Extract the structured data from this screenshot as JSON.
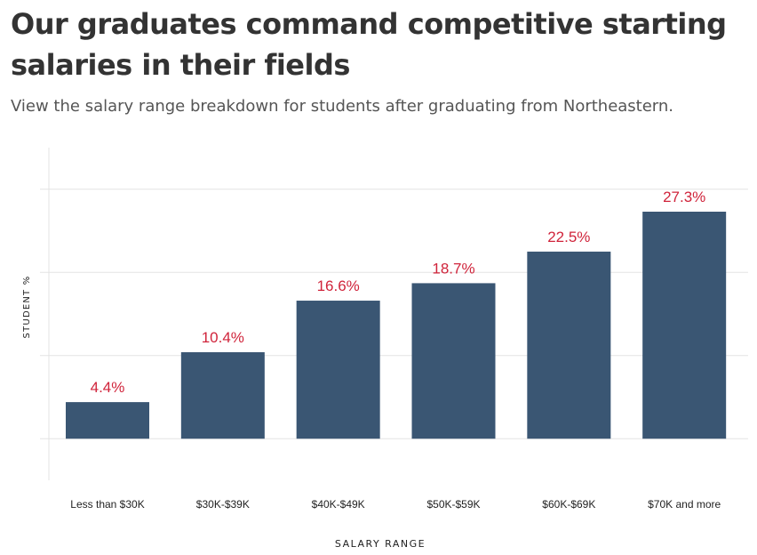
{
  "header": {
    "title": "Our graduates command competitive starting salaries in their fields",
    "subtitle": "View the salary range breakdown for students after graduating from Northeastern."
  },
  "colors": {
    "bar": "#3a5673",
    "data_label": "#d0243b",
    "gridline": "#e3e3e3",
    "title": "#333333",
    "subtitle": "#555555"
  },
  "chart_data": {
    "type": "bar",
    "title": "Our graduates command competitive starting salaries in their fields",
    "subtitle": "View the salary range breakdown for students after graduating from Northeastern.",
    "xlabel": "SALARY RANGE",
    "ylabel": "STUDENT %",
    "categories": [
      "Less than $30K",
      "$30K-$39K",
      "$40K-$49K",
      "$50K-$59K",
      "$60K-$69K",
      "$70K and more"
    ],
    "values": [
      4.4,
      10.4,
      16.6,
      18.7,
      22.5,
      27.3
    ],
    "value_labels": [
      "4.4%",
      "10.4%",
      "16.6%",
      "18.7%",
      "22.5%",
      "27.3%"
    ],
    "ylim": [
      -5,
      35
    ],
    "gridlines_at": [
      0,
      10,
      20,
      30
    ],
    "y_tick_labels_shown": false,
    "grid": true,
    "legend": "none"
  }
}
